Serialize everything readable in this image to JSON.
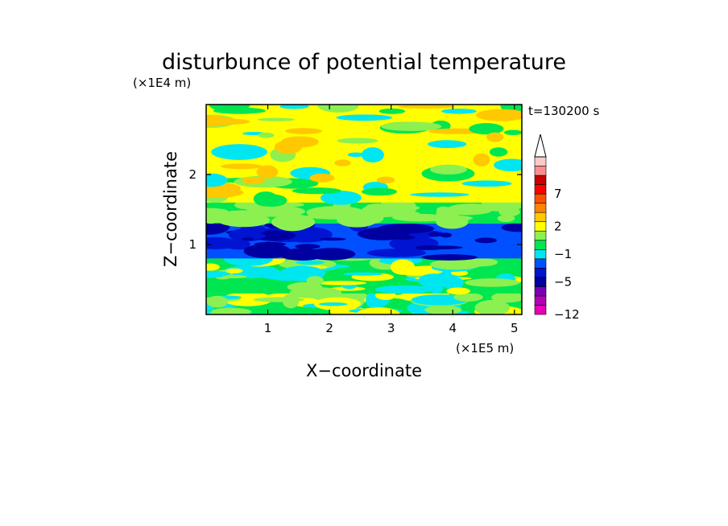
{
  "chart_data": {
    "type": "heatmap",
    "title": "disturbunce of potential temperature",
    "xlabel": "X−coordinate",
    "ylabel": "Z−coordinate",
    "x_unit_label": "(×1E5 m)",
    "y_unit_label": "(×1E4 m)",
    "time_label": "t=130200 s",
    "xlim": [
      0,
      5.12
    ],
    "ylim": [
      0,
      3.0
    ],
    "x_ticks": [
      1,
      2,
      3,
      4,
      5
    ],
    "y_ticks": [
      1,
      2
    ],
    "x_tick_labels": [
      "1",
      "2",
      "3",
      "4",
      "5"
    ],
    "y_tick_labels": [
      "1",
      "2"
    ],
    "colorbar": {
      "colors_bottom_to_top": [
        "#e600b4",
        "#b400b4",
        "#7800b4",
        "#0000a0",
        "#0014d2",
        "#0050ff",
        "#00e6f0",
        "#00e650",
        "#8cf050",
        "#ffff00",
        "#ffc800",
        "#ff8200",
        "#ff5000",
        "#ff0000",
        "#c80000",
        "#ff8c8c",
        "#ffc8c8"
      ],
      "tick_labels": [
        {
          "value": "−12",
          "band": 0
        },
        {
          "value": "−5",
          "band": 3.5
        },
        {
          "value": "−1",
          "band": 6.5
        },
        {
          "value": "2",
          "band": 9.5
        },
        {
          "value": "7",
          "band": 13
        }
      ],
      "extend": "max"
    },
    "field_bands": [
      {
        "z_range": [
          0,
          0.3
        ],
        "dominant": "green",
        "colors": [
          "#00e650",
          "#00e6f0",
          "#8cf050",
          "#ffff00"
        ]
      },
      {
        "z_range": [
          0.3,
          0.8
        ],
        "dominant": "green/cyan",
        "colors": [
          "#00e650",
          "#00e6f0",
          "#8cf050",
          "#ffff00"
        ]
      },
      {
        "z_range": [
          0.8,
          1.3
        ],
        "dominant": "blue",
        "colors": [
          "#0050ff",
          "#0014d2",
          "#0000a0"
        ]
      },
      {
        "z_range": [
          1.3,
          1.6
        ],
        "dominant": "green",
        "colors": [
          "#00e650",
          "#8cf050"
        ]
      },
      {
        "z_range": [
          1.6,
          3.0
        ],
        "dominant": "yellow",
        "colors": [
          "#ffff00",
          "#8cf050",
          "#ffc800",
          "#00e650",
          "#00e6f0"
        ]
      }
    ]
  }
}
